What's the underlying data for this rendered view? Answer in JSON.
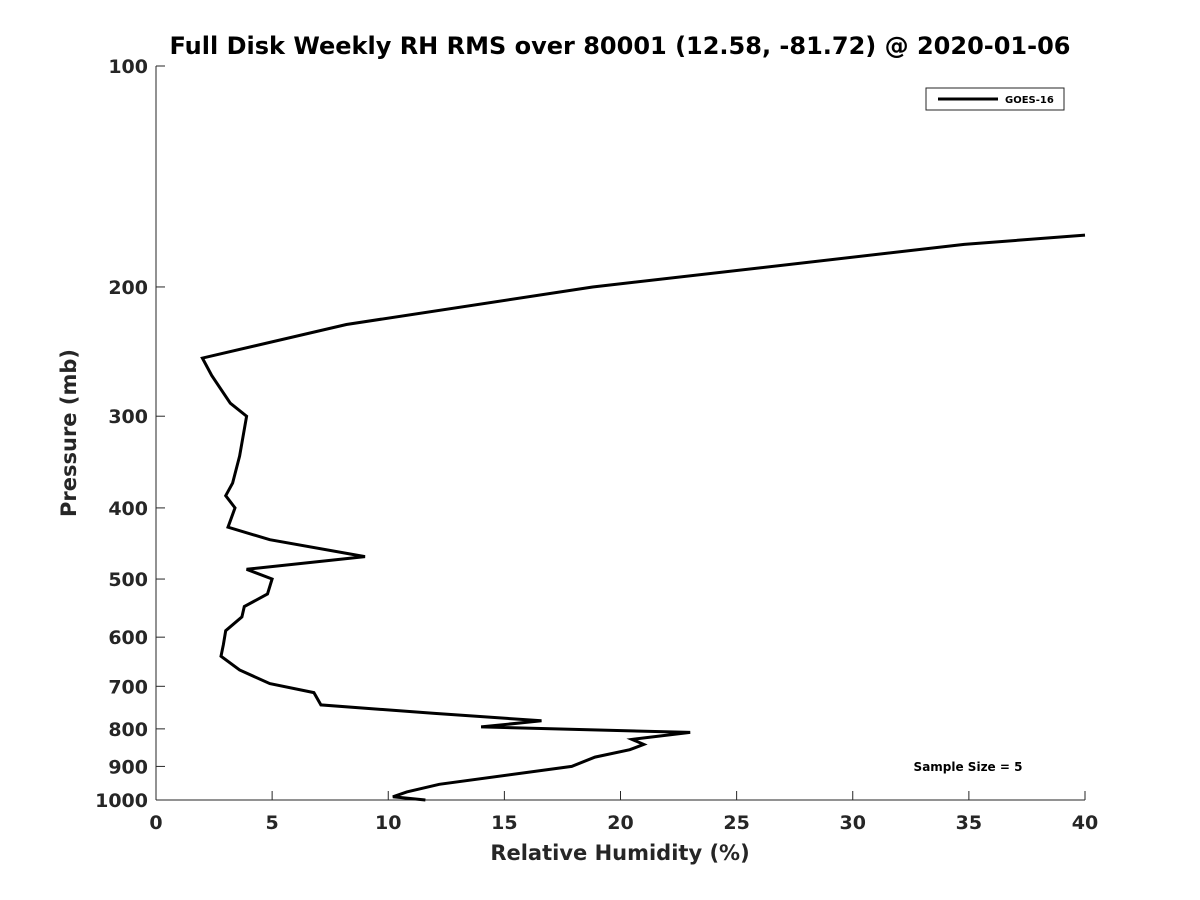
{
  "chart_data": {
    "type": "line",
    "title": "Full Disk Weekly RH RMS over 80001 (12.58, -81.72) @ 2020-01-06",
    "xlabel": "Relative Humidity (%)",
    "ylabel": "Pressure (mb)",
    "xlim": [
      0,
      40
    ],
    "ylim": [
      100,
      1000
    ],
    "yscale": "log",
    "yreversed": true,
    "grid": false,
    "legend_position": "top-right",
    "x_ticks": [
      "0",
      "5",
      "10",
      "15",
      "20",
      "25",
      "30",
      "35",
      "40"
    ],
    "y_ticks": [
      "100",
      "200",
      "300",
      "400",
      "500",
      "600",
      "700",
      "800",
      "900",
      "1000"
    ],
    "annotation": "Sample Size = 5",
    "series": [
      {
        "name": "GOES-16",
        "color": "#000000",
        "points": [
          [
            40.0,
            170
          ],
          [
            34.8,
            175
          ],
          [
            18.8,
            200
          ],
          [
            8.2,
            225
          ],
          [
            2.0,
            250
          ],
          [
            2.4,
            264
          ],
          [
            3.2,
            288
          ],
          [
            3.9,
            300
          ],
          [
            3.6,
            340
          ],
          [
            3.3,
            370
          ],
          [
            3.0,
            385
          ],
          [
            3.4,
            400
          ],
          [
            3.1,
            425
          ],
          [
            4.9,
            442
          ],
          [
            9.0,
            466
          ],
          [
            3.9,
            485
          ],
          [
            5.0,
            500
          ],
          [
            4.8,
            524
          ],
          [
            3.8,
            545
          ],
          [
            3.7,
            563
          ],
          [
            3.0,
            588
          ],
          [
            2.9,
            614
          ],
          [
            2.8,
            637
          ],
          [
            3.6,
            665
          ],
          [
            4.9,
            694
          ],
          [
            6.8,
            714
          ],
          [
            7.1,
            742
          ],
          [
            12.0,
            762
          ],
          [
            16.6,
            780
          ],
          [
            14.0,
            795
          ],
          [
            23.0,
            809
          ],
          [
            20.5,
            827
          ],
          [
            21.0,
            840
          ],
          [
            20.4,
            854
          ],
          [
            18.9,
            874
          ],
          [
            17.9,
            900
          ],
          [
            12.2,
            952
          ],
          [
            10.8,
            975
          ],
          [
            10.2,
            990
          ],
          [
            11.6,
            1000
          ]
        ]
      }
    ]
  }
}
